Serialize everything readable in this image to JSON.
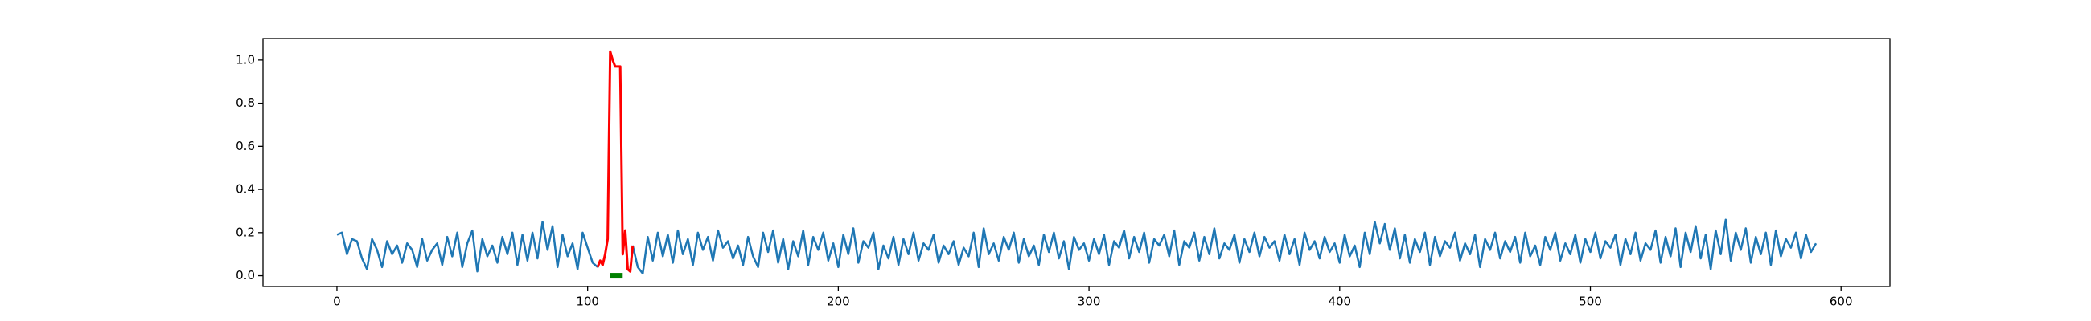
{
  "chart_data": {
    "type": "line",
    "xlim": [
      -29.5,
      619.5
    ],
    "ylim": [
      -0.05,
      1.1
    ],
    "xticks": [
      0,
      100,
      200,
      300,
      400,
      500,
      600
    ],
    "yticks": [
      {
        "value": 0,
        "label": "0.0"
      },
      {
        "value": 0.2,
        "label": "0.2"
      },
      {
        "value": 0.4,
        "label": "0.4"
      },
      {
        "value": 0.6,
        "label": "0.6"
      },
      {
        "value": 0.8,
        "label": "0.8"
      },
      {
        "value": 1,
        "label": "1.0"
      }
    ],
    "grid": false,
    "series": [
      {
        "color": "#1f77b4",
        "width": 2.5,
        "x": [
          0,
          2,
          4,
          6,
          8,
          10,
          12,
          14,
          16,
          18,
          20,
          22,
          24,
          26,
          28,
          30,
          32,
          34,
          36,
          38,
          40,
          42,
          44,
          46,
          48,
          50,
          52,
          54,
          56,
          58,
          60,
          62,
          64,
          66,
          68,
          70,
          72,
          74,
          76,
          78,
          80,
          82,
          84,
          86,
          88,
          90,
          92,
          94,
          96,
          98,
          100,
          102,
          104,
          106,
          108,
          110,
          112,
          114,
          116,
          118,
          120,
          122,
          124,
          126,
          128,
          130,
          132,
          134,
          136,
          138,
          140,
          142,
          144,
          146,
          148,
          150,
          152,
          154,
          156,
          158,
          160,
          162,
          164,
          166,
          168,
          170,
          172,
          174,
          176,
          178,
          180,
          182,
          184,
          186,
          188,
          190,
          192,
          194,
          196,
          198,
          200,
          202,
          204,
          206,
          208,
          210,
          212,
          214,
          216,
          218,
          220,
          222,
          224,
          226,
          228,
          230,
          232,
          234,
          236,
          238,
          240,
          242,
          244,
          246,
          248,
          250,
          252,
          254,
          256,
          258,
          260,
          262,
          264,
          266,
          268,
          270,
          272,
          274,
          276,
          278,
          280,
          282,
          284,
          286,
          288,
          290,
          292,
          294,
          296,
          298,
          300,
          302,
          304,
          306,
          308,
          310,
          312,
          314,
          316,
          318,
          320,
          322,
          324,
          326,
          328,
          330,
          332,
          334,
          336,
          338,
          340,
          342,
          344,
          346,
          348,
          350,
          352,
          354,
          356,
          358,
          360,
          362,
          364,
          366,
          368,
          370,
          372,
          374,
          376,
          378,
          380,
          382,
          384,
          386,
          388,
          390,
          392,
          394,
          396,
          398,
          400,
          402,
          404,
          406,
          408,
          410,
          412,
          414,
          416,
          418,
          420,
          422,
          424,
          426,
          428,
          430,
          432,
          434,
          436,
          438,
          440,
          442,
          444,
          446,
          448,
          450,
          452,
          454,
          456,
          458,
          460,
          462,
          464,
          466,
          468,
          470,
          472,
          474,
          476,
          478,
          480,
          482,
          484,
          486,
          488,
          490,
          492,
          494,
          496,
          498,
          500,
          502,
          504,
          506,
          508,
          510,
          512,
          514,
          516,
          518,
          520,
          522,
          524,
          526,
          528,
          530,
          532,
          534,
          536,
          538,
          540,
          542,
          544,
          546,
          548,
          550,
          552,
          554,
          556,
          558,
          560,
          562,
          564,
          566,
          568,
          570,
          572,
          574,
          576,
          578,
          580,
          582,
          584,
          586,
          588,
          590
        ],
        "values": [
          0.19,
          0.2,
          0.1,
          0.17,
          0.16,
          0.08,
          0.03,
          0.17,
          0.12,
          0.04,
          0.16,
          0.1,
          0.14,
          0.06,
          0.15,
          0.12,
          0.04,
          0.17,
          0.07,
          0.12,
          0.15,
          0.05,
          0.18,
          0.09,
          0.2,
          0.04,
          0.15,
          0.21,
          0.02,
          0.17,
          0.09,
          0.14,
          0.06,
          0.18,
          0.1,
          0.2,
          0.05,
          0.19,
          0.07,
          0.2,
          0.08,
          0.25,
          0.12,
          0.23,
          0.04,
          0.19,
          0.09,
          0.15,
          0.03,
          0.2,
          0.13,
          0.06,
          0.04,
          null,
          null,
          null,
          null,
          null,
          null,
          0.14,
          0.04,
          0.01,
          0.18,
          0.07,
          0.2,
          0.09,
          0.19,
          0.06,
          0.21,
          0.1,
          0.17,
          0.05,
          0.2,
          0.12,
          0.18,
          0.07,
          0.21,
          0.13,
          0.16,
          0.08,
          0.14,
          0.05,
          0.18,
          0.09,
          0.04,
          0.2,
          0.11,
          0.21,
          0.06,
          0.17,
          0.03,
          0.16,
          0.09,
          0.21,
          0.05,
          0.18,
          0.12,
          0.2,
          0.07,
          0.15,
          0.04,
          0.19,
          0.1,
          0.22,
          0.06,
          0.16,
          0.13,
          0.2,
          0.03,
          0.14,
          0.08,
          0.18,
          0.05,
          0.17,
          0.1,
          0.2,
          0.07,
          0.15,
          0.12,
          0.19,
          0.06,
          0.14,
          0.1,
          0.16,
          0.05,
          0.13,
          0.09,
          0.2,
          0.04,
          0.22,
          0.1,
          0.15,
          0.07,
          0.18,
          0.12,
          0.2,
          0.06,
          0.17,
          0.09,
          0.14,
          0.05,
          0.19,
          0.11,
          0.2,
          0.08,
          0.16,
          0.03,
          0.18,
          0.12,
          0.15,
          0.07,
          0.17,
          0.1,
          0.19,
          0.05,
          0.16,
          0.13,
          0.21,
          0.08,
          0.18,
          0.11,
          0.2,
          0.06,
          0.17,
          0.14,
          0.19,
          0.09,
          0.21,
          0.05,
          0.16,
          0.13,
          0.2,
          0.07,
          0.18,
          0.1,
          0.22,
          0.08,
          0.15,
          0.12,
          0.19,
          0.06,
          0.17,
          0.11,
          0.2,
          0.09,
          0.18,
          0.13,
          0.16,
          0.07,
          0.19,
          0.1,
          0.17,
          0.05,
          0.2,
          0.12,
          0.16,
          0.08,
          0.18,
          0.11,
          0.15,
          0.06,
          0.19,
          0.09,
          0.14,
          0.04,
          0.2,
          0.1,
          0.25,
          0.15,
          0.24,
          0.12,
          0.22,
          0.08,
          0.19,
          0.06,
          0.17,
          0.11,
          0.2,
          0.05,
          0.18,
          0.09,
          0.16,
          0.13,
          0.2,
          0.07,
          0.15,
          0.1,
          0.19,
          0.04,
          0.17,
          0.12,
          0.2,
          0.08,
          0.16,
          0.11,
          0.18,
          0.06,
          0.2,
          0.09,
          0.14,
          0.05,
          0.18,
          0.12,
          0.2,
          0.07,
          0.15,
          0.1,
          0.19,
          0.06,
          0.17,
          0.11,
          0.2,
          0.08,
          0.16,
          0.13,
          0.19,
          0.05,
          0.17,
          0.1,
          0.2,
          0.07,
          0.15,
          0.12,
          0.21,
          0.06,
          0.18,
          0.09,
          0.22,
          0.04,
          0.2,
          0.11,
          0.23,
          0.08,
          0.19,
          0.03,
          0.21,
          0.1,
          0.26,
          0.07,
          0.2,
          0.12,
          0.22,
          0.06,
          0.18,
          0.1,
          0.2,
          0.05,
          0.21,
          0.09,
          0.17,
          0.13,
          0.2,
          0.08,
          0.19,
          0.11,
          0.15
        ]
      },
      {
        "color": "#ff0000",
        "width": 3,
        "x": [
          104,
          105,
          106,
          107,
          108,
          109,
          110,
          111,
          112,
          113,
          114,
          115,
          116,
          117,
          118
        ],
        "values": [
          0.04,
          0.07,
          0.05,
          0.1,
          0.17,
          1.04,
          1.0,
          0.97,
          0.97,
          0.97,
          0.1,
          0.21,
          0.03,
          0.02,
          0.14
        ]
      },
      {
        "color": "#008000",
        "width": 7,
        "x": [
          109,
          114
        ],
        "values": [
          0,
          0
        ]
      }
    ]
  }
}
